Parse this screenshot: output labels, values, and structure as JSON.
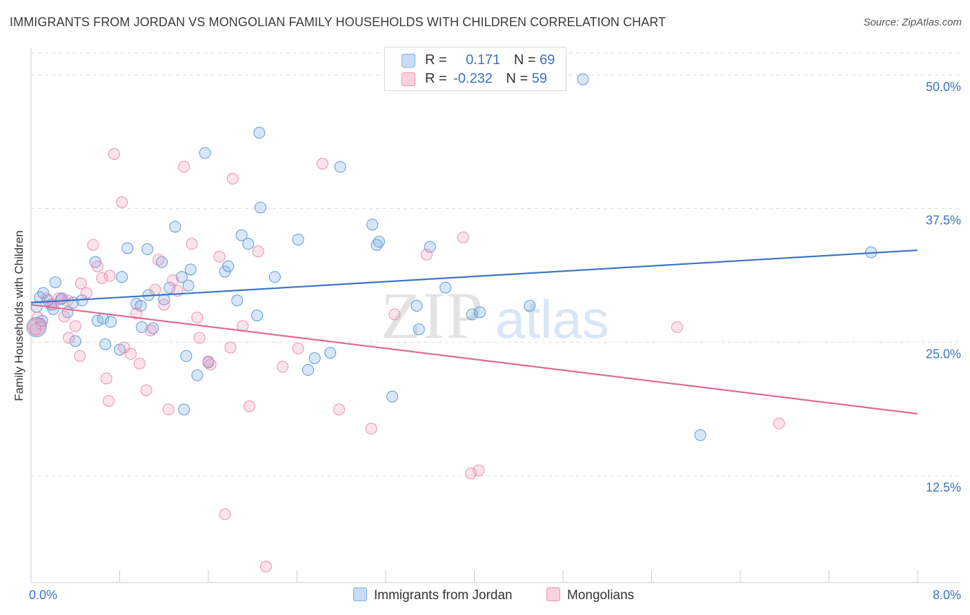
{
  "title": "IMMIGRANTS FROM JORDAN VS MONGOLIAN FAMILY HOUSEHOLDS WITH CHILDREN CORRELATION CHART",
  "source": "Source: ZipAtlas.com",
  "watermark": {
    "zip": "ZIP",
    "atlas": "atlas"
  },
  "legend": {
    "rows": [
      {
        "r_label": "R =",
        "r_value": "0.171",
        "n_label": "N =",
        "n_value": "69",
        "color": "#7aaee8"
      },
      {
        "r_label": "R =",
        "r_value": "-0.232",
        "n_label": "N =",
        "n_value": "59",
        "color": "#f08fb0"
      }
    ]
  },
  "bottom_legend": [
    {
      "label": "Immigrants from Jordan",
      "color": "#7aaee8"
    },
    {
      "label": "Mongolians",
      "color": "#f08fb0"
    }
  ],
  "colors": {
    "blue": "#3b73c8",
    "pink": "#e06a95",
    "grid": "#dddddd"
  },
  "chart_data": {
    "type": "scatter",
    "title": "IMMIGRANTS FROM JORDAN VS MONGOLIAN FAMILY HOUSEHOLDS WITH CHILDREN CORRELATION CHART",
    "xlabel": "",
    "ylabel": "Family Households with Children",
    "xlim": [
      0,
      8
    ],
    "ylim": [
      2.5,
      52.5
    ],
    "x_tick_labels": [
      "0.0%",
      "8.0%"
    ],
    "y_ticks": [
      12.5,
      25.0,
      37.5,
      50.0
    ],
    "y_tick_labels": [
      "12.5%",
      "25.0%",
      "37.5%",
      "50.0%"
    ],
    "grid": true,
    "legend_position": "top-center",
    "series": [
      {
        "name": "Immigrants from Jordan",
        "color": "#7aaee8",
        "trend": [
          [
            0,
            28.7
          ],
          [
            8,
            33.6
          ]
        ],
        "points": [
          [
            0.05,
            28.3
          ],
          [
            0.08,
            29.2
          ],
          [
            0.11,
            29.6
          ],
          [
            0.15,
            28.9
          ],
          [
            0.18,
            28.5
          ],
          [
            0.22,
            30.6
          ],
          [
            0.28,
            29.1
          ],
          [
            0.38,
            28.7
          ],
          [
            0.46,
            28.9
          ],
          [
            0.33,
            27.8
          ],
          [
            0.4,
            25.1
          ],
          [
            0.6,
            27.0
          ],
          [
            0.65,
            27.2
          ],
          [
            0.72,
            26.9
          ],
          [
            0.67,
            24.8
          ],
          [
            0.8,
            24.3
          ],
          [
            0.58,
            32.5
          ],
          [
            0.82,
            31.1
          ],
          [
            0.87,
            33.8
          ],
          [
            0.95,
            28.6
          ],
          [
            0.99,
            28.4
          ],
          [
            1.0,
            26.4
          ],
          [
            1.05,
            33.7
          ],
          [
            1.06,
            29.4
          ],
          [
            1.1,
            26.3
          ],
          [
            1.18,
            32.5
          ],
          [
            1.2,
            29.0
          ],
          [
            1.25,
            30.1
          ],
          [
            1.3,
            35.8
          ],
          [
            1.36,
            31.1
          ],
          [
            1.42,
            30.3
          ],
          [
            1.44,
            31.8
          ],
          [
            1.38,
            18.7
          ],
          [
            1.4,
            23.7
          ],
          [
            1.5,
            21.9
          ],
          [
            1.57,
            42.7
          ],
          [
            1.6,
            23.1
          ],
          [
            1.75,
            31.6
          ],
          [
            1.78,
            32.1
          ],
          [
            1.86,
            28.9
          ],
          [
            1.9,
            35.0
          ],
          [
            1.96,
            34.2
          ],
          [
            2.04,
            27.5
          ],
          [
            2.07,
            37.6
          ],
          [
            2.06,
            44.6
          ],
          [
            2.2,
            31.1
          ],
          [
            2.41,
            34.6
          ],
          [
            2.5,
            22.4
          ],
          [
            2.56,
            23.5
          ],
          [
            2.7,
            24.0
          ],
          [
            2.79,
            41.4
          ],
          [
            3.08,
            36.0
          ],
          [
            3.12,
            34.1
          ],
          [
            3.14,
            34.4
          ],
          [
            3.26,
            19.9
          ],
          [
            3.48,
            28.4
          ],
          [
            3.5,
            26.2
          ],
          [
            3.6,
            33.9
          ],
          [
            3.74,
            30.1
          ],
          [
            3.98,
            27.6
          ],
          [
            4.05,
            27.8
          ],
          [
            4.5,
            28.4
          ],
          [
            4.75,
            50.6
          ],
          [
            4.98,
            49.6
          ],
          [
            6.04,
            16.3
          ],
          [
            7.58,
            33.4
          ],
          [
            0.1,
            27.0
          ],
          [
            0.2,
            28.1
          ],
          [
            0.27,
            29.0
          ]
        ]
      },
      {
        "name": "Mongolians",
        "color": "#f08fb0",
        "trend": [
          [
            0,
            28.5
          ],
          [
            8,
            18.3
          ]
        ],
        "points": [
          [
            0.04,
            26.2
          ],
          [
            0.06,
            27.3
          ],
          [
            0.09,
            26.7
          ],
          [
            0.14,
            29.1
          ],
          [
            0.2,
            28.5
          ],
          [
            0.25,
            29.1
          ],
          [
            0.3,
            27.4
          ],
          [
            0.34,
            25.4
          ],
          [
            0.4,
            26.5
          ],
          [
            0.45,
            30.5
          ],
          [
            0.5,
            29.6
          ],
          [
            0.44,
            23.7
          ],
          [
            0.56,
            34.1
          ],
          [
            0.6,
            32.1
          ],
          [
            0.64,
            31.0
          ],
          [
            0.71,
            31.2
          ],
          [
            0.7,
            19.5
          ],
          [
            0.68,
            21.6
          ],
          [
            0.75,
            42.6
          ],
          [
            0.82,
            38.1
          ],
          [
            0.84,
            24.5
          ],
          [
            0.9,
            23.9
          ],
          [
            0.95,
            27.7
          ],
          [
            0.98,
            23.0
          ],
          [
            1.04,
            20.5
          ],
          [
            1.08,
            26.1
          ],
          [
            1.12,
            29.9
          ],
          [
            1.15,
            32.7
          ],
          [
            1.2,
            28.5
          ],
          [
            1.24,
            18.7
          ],
          [
            1.28,
            30.8
          ],
          [
            1.32,
            29.8
          ],
          [
            1.38,
            41.4
          ],
          [
            1.45,
            34.2
          ],
          [
            1.5,
            27.3
          ],
          [
            1.52,
            25.4
          ],
          [
            1.6,
            23.2
          ],
          [
            1.62,
            22.9
          ],
          [
            1.7,
            33.0
          ],
          [
            1.75,
            8.9
          ],
          [
            1.8,
            24.5
          ],
          [
            1.82,
            40.3
          ],
          [
            1.91,
            26.5
          ],
          [
            1.97,
            19.0
          ],
          [
            2.05,
            33.5
          ],
          [
            2.12,
            4.0
          ],
          [
            2.27,
            22.7
          ],
          [
            2.41,
            24.4
          ],
          [
            2.63,
            41.7
          ],
          [
            2.78,
            18.7
          ],
          [
            3.07,
            16.9
          ],
          [
            3.28,
            27.6
          ],
          [
            3.57,
            33.2
          ],
          [
            3.9,
            34.8
          ],
          [
            3.97,
            12.7
          ],
          [
            4.04,
            13.0
          ],
          [
            5.83,
            26.4
          ],
          [
            6.75,
            17.4
          ],
          [
            0.33,
            28.9
          ]
        ]
      }
    ]
  }
}
